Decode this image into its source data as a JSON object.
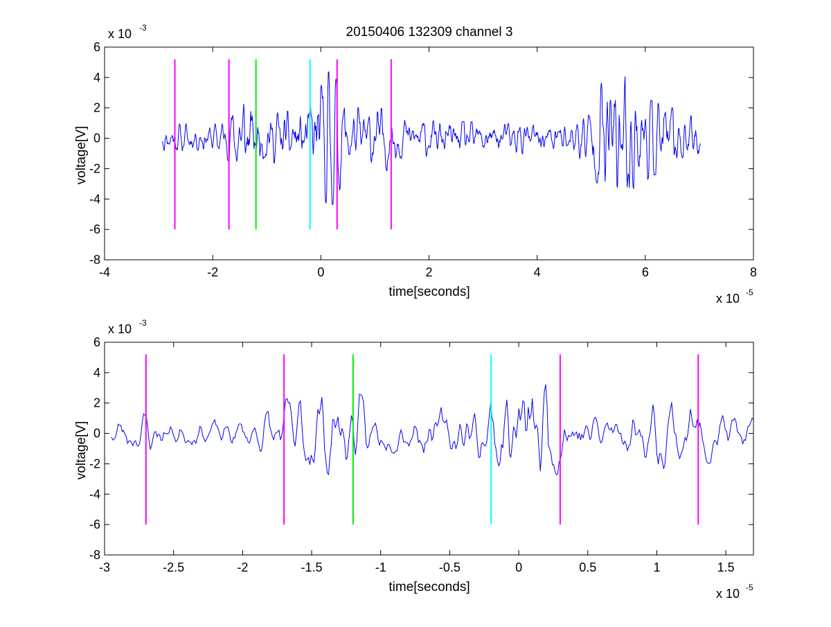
{
  "figure_title": "20150406 132309 channel 3",
  "colors": {
    "signal": "#0000ee",
    "magenta": "#ff00ff",
    "green": "#00ee00",
    "cyan": "#00ffff",
    "axes": "#000000",
    "background": "#ffffff"
  },
  "chart_data": [
    {
      "type": "line",
      "panel": "top",
      "title": "20150406 132309 channel 3",
      "xlabel": "time[seconds]",
      "ylabel": "voltage[V]",
      "x_multiplier": {
        "base": "x 10",
        "exp": "-5"
      },
      "y_multiplier": {
        "base": "x 10",
        "exp": "-3"
      },
      "xlim": [
        -4,
        8
      ],
      "ylim": [
        -8,
        6
      ],
      "x_ticks": [
        -4,
        -2,
        0,
        2,
        4,
        6,
        8
      ],
      "x_tick_labels": [
        "-4",
        "-2",
        "0",
        "2",
        "4",
        "6",
        "8"
      ],
      "y_ticks": [
        -8,
        -6,
        -4,
        -2,
        0,
        2,
        4,
        6
      ],
      "y_tick_labels": [
        "-8",
        "-6",
        "-4",
        "-2",
        "0",
        "2",
        "4",
        "6"
      ],
      "grid": false,
      "signal": {
        "color": "#0000ee",
        "x_start": -2.93,
        "x_end": 7.02,
        "points": 1000,
        "seed": 11,
        "envelope": [
          [
            -2.93,
            1.0
          ],
          [
            -2.0,
            0.9
          ],
          [
            -1.75,
            1.3
          ],
          [
            -1.4,
            3.0
          ],
          [
            -1.2,
            1.6
          ],
          [
            -0.9,
            1.6
          ],
          [
            -0.6,
            1.8
          ],
          [
            -0.3,
            2.0
          ],
          [
            0.0,
            4.0
          ],
          [
            0.2,
            4.5
          ],
          [
            0.5,
            2.2
          ],
          [
            0.9,
            1.8
          ],
          [
            1.2,
            2.2
          ],
          [
            1.5,
            1.3
          ],
          [
            2.5,
            1.1
          ],
          [
            4.0,
            1.0
          ],
          [
            4.7,
            1.1
          ],
          [
            5.0,
            2.0
          ],
          [
            5.25,
            4.2
          ],
          [
            5.5,
            4.8
          ],
          [
            5.8,
            3.5
          ],
          [
            6.1,
            2.5
          ],
          [
            6.5,
            2.0
          ],
          [
            7.02,
            1.2
          ]
        ]
      },
      "markers": [
        {
          "x": -2.7,
          "y_range": [
            -6,
            5.2
          ],
          "color": "#ff00ff"
        },
        {
          "x": -1.7,
          "y_range": [
            -6,
            5.2
          ],
          "color": "#ff00ff"
        },
        {
          "x": -1.2,
          "y_range": [
            -6,
            5.2
          ],
          "color": "#00ee00"
        },
        {
          "x": -0.2,
          "y_range": [
            -6,
            5.2
          ],
          "color": "#00ffff"
        },
        {
          "x": 0.3,
          "y_range": [
            -6,
            5.2
          ],
          "color": "#ff00ff"
        },
        {
          "x": 1.3,
          "y_range": [
            -6,
            5.2
          ],
          "color": "#ff00ff"
        }
      ]
    },
    {
      "type": "line",
      "panel": "bottom",
      "title": "",
      "xlabel": "time[seconds]",
      "ylabel": "voltage[V]",
      "x_multiplier": {
        "base": "x 10",
        "exp": "-5"
      },
      "y_multiplier": {
        "base": "x 10",
        "exp": "-3"
      },
      "xlim": [
        -3.0,
        1.7
      ],
      "ylim": [
        -8,
        6
      ],
      "x_ticks": [
        -3,
        -2.5,
        -2,
        -1.5,
        -1,
        -0.5,
        0,
        0.5,
        1,
        1.5
      ],
      "x_tick_labels": [
        "-3",
        "-2.5",
        "-2",
        "-1.5",
        "-1",
        "-0.5",
        "0",
        "0.5",
        "1",
        "1.5"
      ],
      "y_ticks": [
        -8,
        -6,
        -4,
        -2,
        0,
        2,
        4,
        6
      ],
      "y_tick_labels": [
        "-8",
        "-6",
        "-4",
        "-2",
        "0",
        "2",
        "4",
        "6"
      ],
      "grid": false,
      "signal": {
        "color": "#0000ee",
        "x_start": -2.95,
        "x_end": 1.7,
        "points": 480,
        "seed": 23,
        "envelope": [
          [
            -2.95,
            1.2
          ],
          [
            -2.7,
            1.4
          ],
          [
            -2.5,
            0.9
          ],
          [
            -2.0,
            0.9
          ],
          [
            -1.8,
            1.5
          ],
          [
            -1.6,
            2.8
          ],
          [
            -1.45,
            3.2
          ],
          [
            -1.3,
            2.6
          ],
          [
            -1.15,
            2.6
          ],
          [
            -1.0,
            1.2
          ],
          [
            -0.8,
            1.4
          ],
          [
            -0.5,
            1.8
          ],
          [
            -0.3,
            2.0
          ],
          [
            -0.1,
            3.5
          ],
          [
            0.0,
            4.6
          ],
          [
            0.15,
            4.7
          ],
          [
            0.3,
            2.4
          ],
          [
            0.5,
            1.8
          ],
          [
            0.8,
            1.5
          ],
          [
            1.1,
            2.5
          ],
          [
            1.3,
            2.2
          ],
          [
            1.5,
            1.6
          ],
          [
            1.7,
            1.0
          ]
        ]
      },
      "markers": [
        {
          "x": -2.7,
          "y_range": [
            -6,
            5.2
          ],
          "color": "#ff00ff"
        },
        {
          "x": -1.7,
          "y_range": [
            -6,
            5.2
          ],
          "color": "#ff00ff"
        },
        {
          "x": -1.2,
          "y_range": [
            -6,
            5.2
          ],
          "color": "#00ee00"
        },
        {
          "x": -0.2,
          "y_range": [
            -6,
            5.2
          ],
          "color": "#00ffff"
        },
        {
          "x": 0.3,
          "y_range": [
            -6,
            5.2
          ],
          "color": "#ff00ff"
        },
        {
          "x": 1.3,
          "y_range": [
            -6,
            5.2
          ],
          "color": "#ff00ff"
        }
      ]
    }
  ]
}
